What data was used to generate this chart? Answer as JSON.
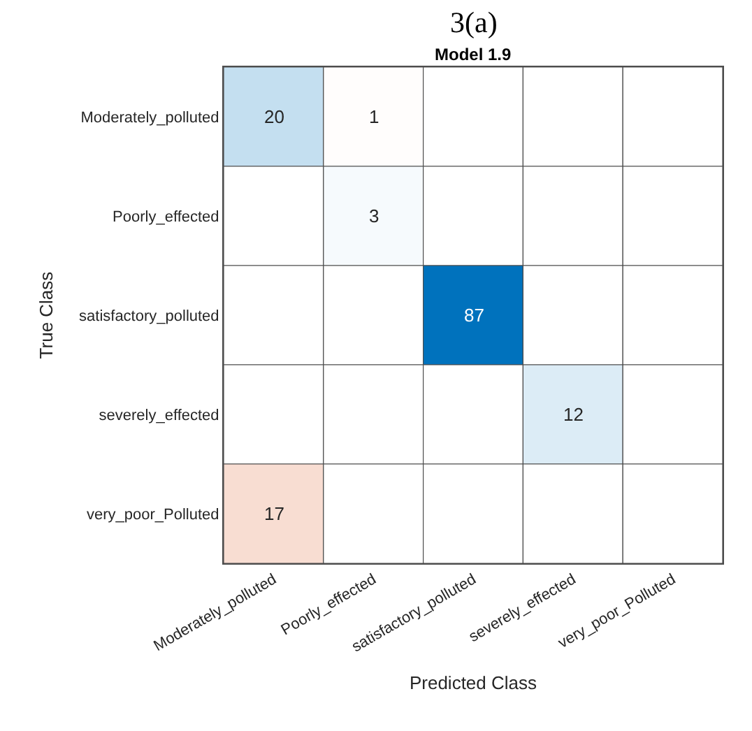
{
  "chart_data": {
    "type": "heatmap",
    "data_labels": true,
    "title": "3(a)",
    "subtitle": "Model 1.9",
    "xlabel": "Predicted Class",
    "ylabel": "True Class",
    "categories": [
      "Moderately_polluted",
      "Poorly_effected",
      "satisfactory_polluted",
      "severely_effected",
      "very_poor_Polluted"
    ],
    "y_categories": [
      "Moderately_polluted",
      "Poorly_effected",
      "satisfactory_polluted",
      "severely_effected",
      "very_poor_Polluted"
    ],
    "cells": [
      [
        20,
        1,
        null,
        null,
        null
      ],
      [
        null,
        3,
        null,
        null,
        null
      ],
      [
        null,
        null,
        87,
        null,
        null
      ],
      [
        null,
        null,
        null,
        12,
        null
      ],
      [
        17,
        null,
        null,
        null,
        null
      ]
    ]
  }
}
